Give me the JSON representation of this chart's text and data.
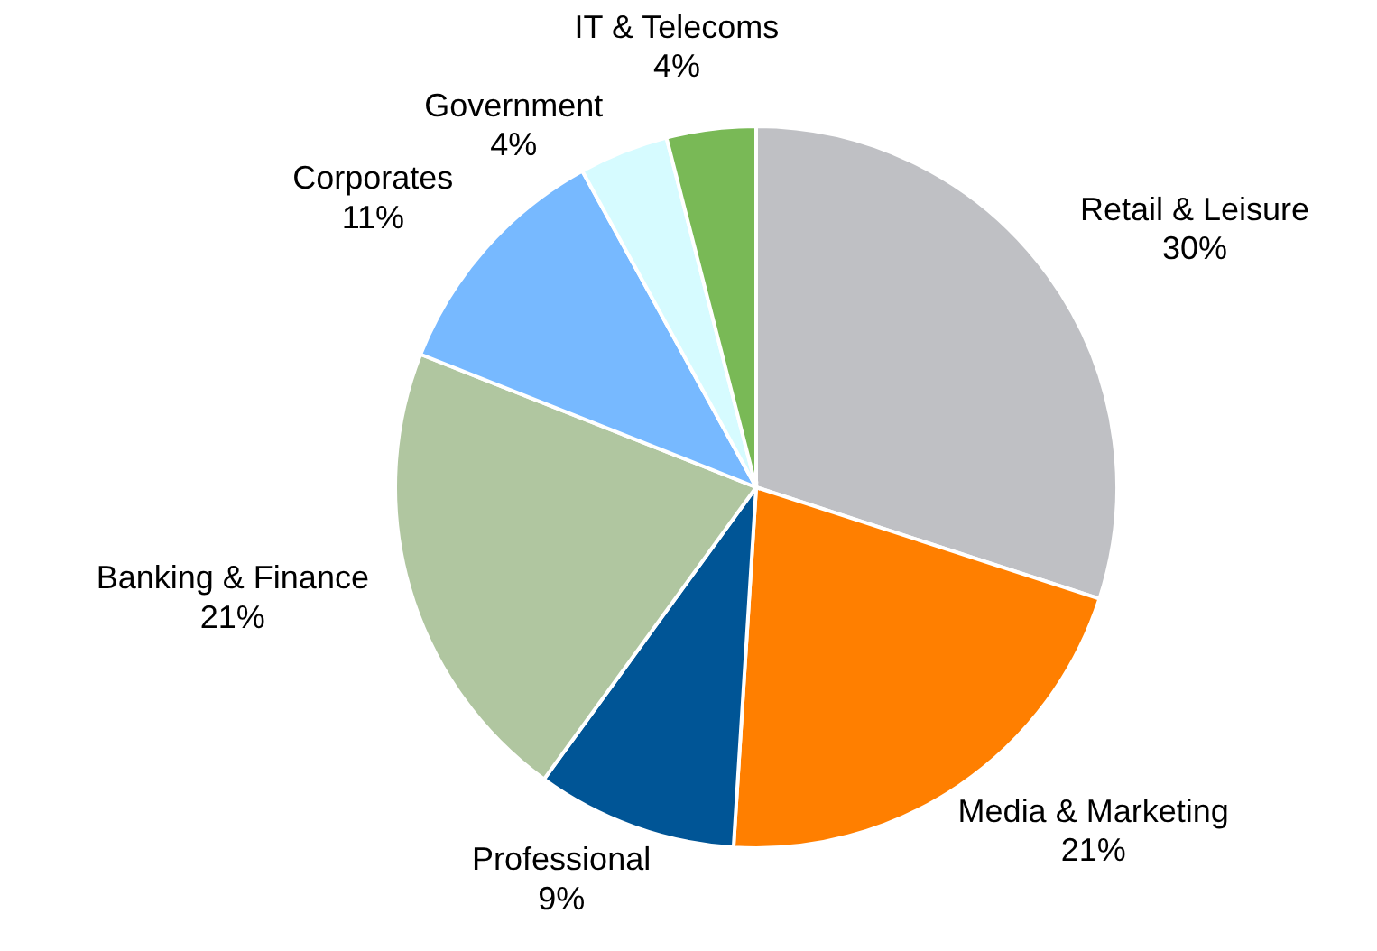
{
  "chart_data": {
    "type": "pie",
    "categories": [
      "Retail & Leisure",
      "Media & Marketing",
      "Professional",
      "Banking & Finance",
      "Corporates",
      "Government",
      "IT & Telecoms"
    ],
    "values": [
      30,
      21,
      9,
      21,
      11,
      4,
      4
    ],
    "colors": [
      "#bfc0c4",
      "#ff7f00",
      "#005596",
      "#b0c6a0",
      "#77b9ff",
      "#d6fbff",
      "#79b956"
    ],
    "value_labels": [
      "30%",
      "21%",
      "9%",
      "21%",
      "11%",
      "4%",
      "4%"
    ],
    "legend": false
  }
}
